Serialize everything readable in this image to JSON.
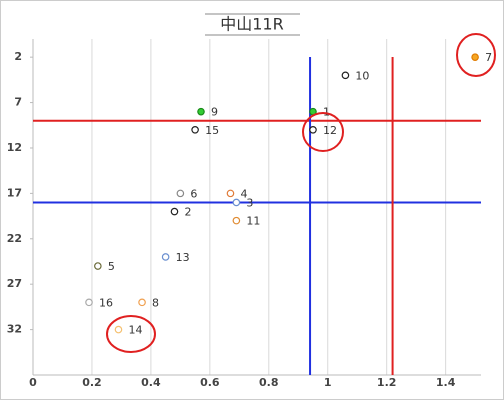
{
  "chart_data": {
    "type": "scatter",
    "title": "中山11R",
    "series": [
      {
        "labels": [
          "7",
          "10",
          "9",
          "1",
          "15",
          "12",
          "6",
          "4",
          "3",
          "2",
          "11",
          "13",
          "5",
          "16",
          "8",
          "14"
        ],
        "x": [
          1.5,
          1.06,
          0.57,
          0.95,
          0.55,
          0.95,
          0.5,
          0.67,
          0.69,
          0.48,
          0.69,
          0.45,
          0.22,
          0.19,
          0.37,
          0.29
        ],
        "values": [
          2,
          4,
          8,
          8,
          10,
          10,
          17,
          17,
          18,
          19,
          20,
          24,
          25,
          29,
          29,
          32
        ],
        "colors": [
          "#e07b00",
          "#222222",
          "#1a8a1a",
          "#1a8a1a",
          "#222222",
          "#222222",
          "#888888",
          "#e07b39",
          "#6a8fd0",
          "#222222",
          "#e08a30",
          "#6a8fd0",
          "#6b6b3a",
          "#aaaaaa",
          "#f0a050",
          "#f5c070"
        ],
        "fills": [
          "#f5a623",
          "#ffffff",
          "#33cc33",
          "#33cc33",
          "#ffffff",
          "#ffffff",
          "#ffffff",
          "#ffffff",
          "#ffffff",
          "#ffffff",
          "#ffffff",
          "#ffffff",
          "#ffffff",
          "#ffffff",
          "#ffffff",
          "#ffffff"
        ]
      }
    ],
    "xlim": [
      0,
      1.52
    ],
    "xticks": [
      0,
      0.2,
      0.4,
      0.6,
      0.8,
      1,
      1.2,
      1.4
    ],
    "ylim": [
      0,
      37
    ],
    "yticks": [
      2,
      7,
      12,
      17,
      22,
      27,
      32
    ],
    "y_reversed": true,
    "grid": "x",
    "hlines": [
      {
        "value": 9,
        "color": "#e02020"
      },
      {
        "value": 18,
        "color": "#2030e0"
      }
    ],
    "vlines": [
      {
        "value": 0.94,
        "color": "#2030e0"
      },
      {
        "value": 1.22,
        "color": "#e02020"
      }
    ]
  }
}
